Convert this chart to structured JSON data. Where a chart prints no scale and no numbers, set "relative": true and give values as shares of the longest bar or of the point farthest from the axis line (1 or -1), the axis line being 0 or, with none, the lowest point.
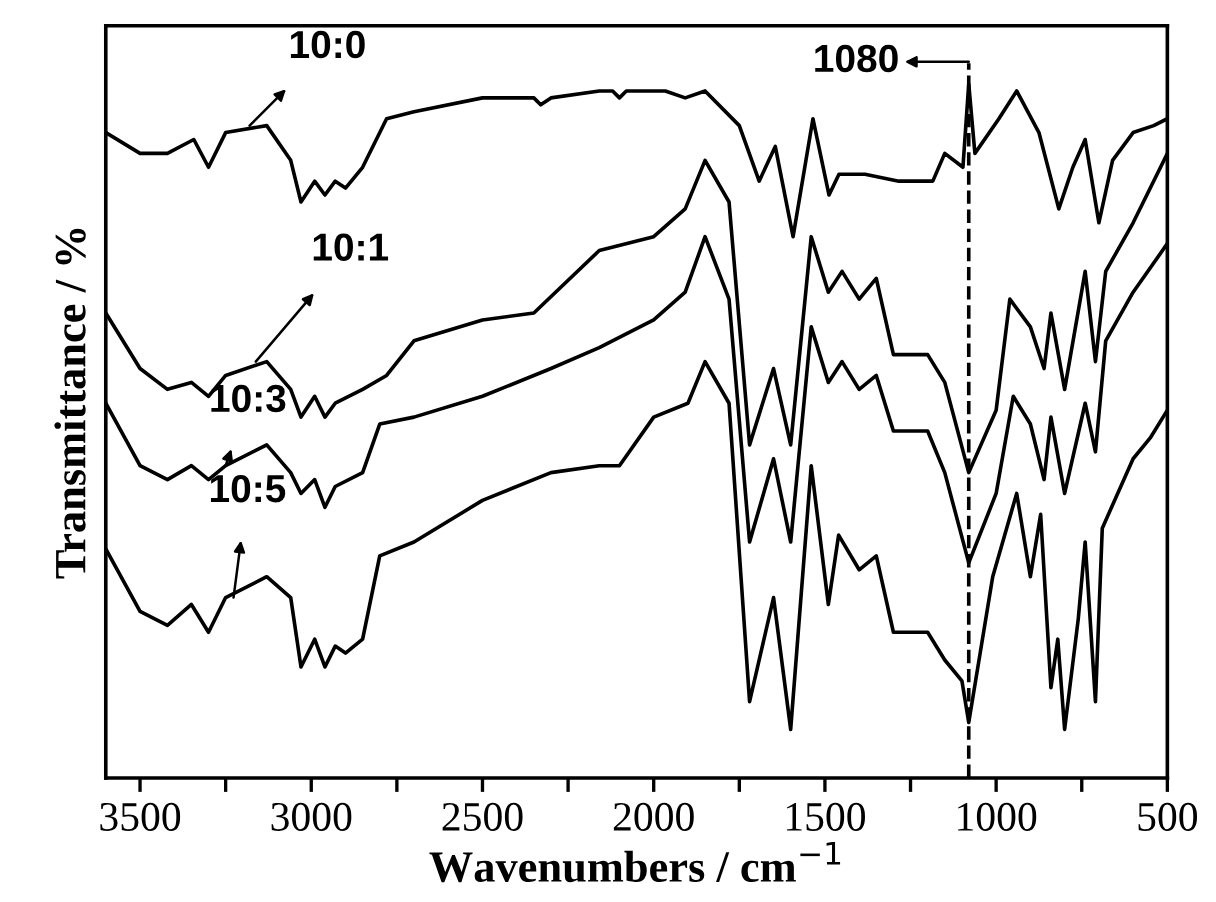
{
  "chart_data": {
    "type": "line",
    "relative": true,
    "xlabel": "Wavenumbers / cm$^{−1}$",
    "ylabel": "Transmittance / %",
    "xlim": [
      3600,
      500
    ],
    "xticks": [
      3500,
      {
        "value": 3250,
        "label": null
      },
      3000,
      {
        "value": 2750,
        "label": null
      },
      2500,
      {
        "value": 2250,
        "label": null
      },
      2000,
      {
        "value": 1750,
        "label": null
      },
      1500,
      {
        "value": 1250,
        "label": null
      },
      1000,
      {
        "value": 750,
        "label": null
      },
      500
    ],
    "tick_labels": "x",
    "grid": false,
    "line_style": "solid",
    "marker": "none",
    "series": [
      {
        "color": "#000000",
        "x": [
          3600,
          3500,
          3420,
          3343,
          3300,
          3250,
          3130,
          3060,
          3030,
          2990,
          2960,
          2930,
          2900,
          2850,
          2780,
          2700,
          2500,
          2350,
          2330,
          2300,
          2159,
          2120,
          2100,
          2080,
          1966,
          1908,
          1850,
          1750,
          1692,
          1645,
          1593,
          1535,
          1488,
          1459,
          1383,
          1284,
          1185,
          1150,
          1097,
          1080,
          1062,
          992,
          940,
          875,
          817,
          776,
          740,
          700,
          660,
          600,
          540,
          500
        ],
        "values": [
          0.93,
          0.9,
          0.9,
          0.92,
          0.88,
          0.93,
          0.94,
          0.89,
          0.83,
          0.86,
          0.84,
          0.86,
          0.85,
          0.88,
          0.95,
          0.96,
          0.98,
          0.98,
          0.97,
          0.98,
          0.99,
          0.99,
          0.98,
          0.99,
          0.99,
          0.98,
          0.99,
          0.94,
          0.86,
          0.91,
          0.78,
          0.95,
          0.84,
          0.87,
          0.87,
          0.86,
          0.86,
          0.9,
          0.88,
          1.0,
          0.9,
          0.95,
          0.99,
          0.93,
          0.82,
          0.88,
          0.92,
          0.8,
          0.89,
          0.93,
          0.94,
          0.95
        ]
      },
      {
        "color": "#000000",
        "x": [
          3600,
          3500,
          3420,
          3350,
          3300,
          3250,
          3130,
          3060,
          3030,
          2990,
          2960,
          2930,
          2850,
          2780,
          2700,
          2500,
          2350,
          2159,
          2000,
          1908,
          1850,
          1780,
          1720,
          1650,
          1600,
          1540,
          1490,
          1450,
          1400,
          1350,
          1300,
          1200,
          1150,
          1080,
          1000,
          960,
          900,
          860,
          840,
          800,
          740,
          710,
          680,
          600,
          500
        ],
        "values": [
          0.67,
          0.59,
          0.56,
          0.57,
          0.55,
          0.58,
          0.6,
          0.56,
          0.52,
          0.55,
          0.52,
          0.54,
          0.56,
          0.58,
          0.63,
          0.66,
          0.67,
          0.76,
          0.78,
          0.82,
          0.89,
          0.83,
          0.48,
          0.59,
          0.48,
          0.78,
          0.7,
          0.73,
          0.69,
          0.72,
          0.61,
          0.61,
          0.57,
          0.44,
          0.53,
          0.69,
          0.65,
          0.59,
          0.67,
          0.56,
          0.73,
          0.6,
          0.73,
          0.8,
          0.9
        ]
      },
      {
        "color": "#000000",
        "x": [
          3600,
          3500,
          3420,
          3350,
          3300,
          3250,
          3130,
          3060,
          3030,
          2990,
          2960,
          2930,
          2850,
          2800,
          2700,
          2500,
          2300,
          2159,
          2000,
          1908,
          1850,
          1780,
          1720,
          1650,
          1600,
          1540,
          1490,
          1450,
          1400,
          1350,
          1300,
          1200,
          1150,
          1080,
          1000,
          950,
          900,
          860,
          840,
          800,
          740,
          710,
          680,
          600,
          500
        ],
        "values": [
          0.54,
          0.45,
          0.43,
          0.45,
          0.43,
          0.45,
          0.48,
          0.44,
          0.41,
          0.43,
          0.39,
          0.42,
          0.44,
          0.51,
          0.52,
          0.55,
          0.59,
          0.62,
          0.66,
          0.7,
          0.78,
          0.69,
          0.34,
          0.46,
          0.34,
          0.65,
          0.57,
          0.6,
          0.56,
          0.58,
          0.5,
          0.5,
          0.44,
          0.31,
          0.41,
          0.55,
          0.51,
          0.43,
          0.52,
          0.41,
          0.54,
          0.47,
          0.63,
          0.7,
          0.77
        ]
      },
      {
        "color": "#000000",
        "x": [
          3600,
          3500,
          3420,
          3350,
          3300,
          3250,
          3130,
          3060,
          3030,
          2990,
          2960,
          2930,
          2900,
          2850,
          2800,
          2700,
          2500,
          2300,
          2159,
          2100,
          2000,
          1900,
          1850,
          1780,
          1720,
          1650,
          1600,
          1540,
          1490,
          1460,
          1400,
          1350,
          1300,
          1200,
          1150,
          1100,
          1080,
          1010,
          940,
          900,
          870,
          840,
          820,
          800,
          760,
          740,
          710,
          690,
          600,
          550,
          500
        ],
        "values": [
          0.33,
          0.24,
          0.22,
          0.25,
          0.21,
          0.26,
          0.29,
          0.26,
          0.16,
          0.2,
          0.16,
          0.19,
          0.18,
          0.2,
          0.32,
          0.34,
          0.4,
          0.44,
          0.45,
          0.45,
          0.52,
          0.54,
          0.6,
          0.54,
          0.11,
          0.26,
          0.07,
          0.45,
          0.25,
          0.35,
          0.3,
          0.32,
          0.21,
          0.21,
          0.17,
          0.14,
          0.08,
          0.29,
          0.41,
          0.29,
          0.38,
          0.13,
          0.2,
          0.07,
          0.23,
          0.34,
          0.11,
          0.36,
          0.46,
          0.49,
          0.53
        ]
      }
    ],
    "annotations": [
      {
        "text": "10:0",
        "x": 3180,
        "y": 0.94
      },
      {
        "text": "10:1",
        "x": 3162,
        "y": 0.6
      },
      {
        "text": "10:3",
        "x": 3250,
        "y": 0.45
      },
      {
        "text": "10:5",
        "x": 3227,
        "y": 0.26
      }
    ],
    "ref_lines": [
      {
        "axis": "x",
        "value": 1080,
        "label": "1080",
        "color": "#000000",
        "line_style": "dashed"
      }
    ]
  }
}
